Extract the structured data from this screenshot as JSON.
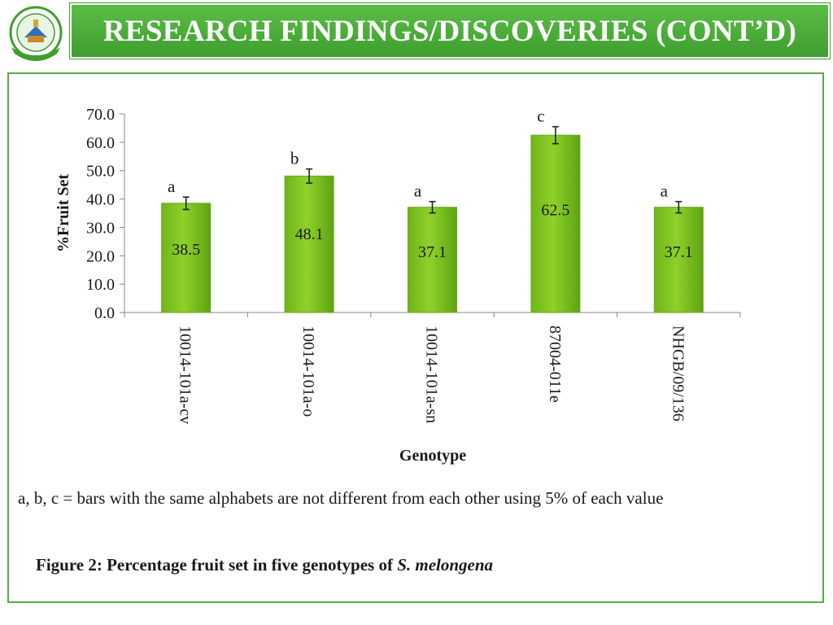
{
  "header": {
    "title": "RESEARCH FINDINGS/DISCOVERIES (CONT’D)"
  },
  "colors": {
    "banner": "#4caf3a",
    "bar": "#8fd12a",
    "frame": "#5aa84a"
  },
  "chart_data": {
    "type": "bar",
    "categories": [
      "10014-101a-cv",
      "10014-101a-o",
      "10014-101a-sn",
      "87004-011e",
      "NHGB/09/136"
    ],
    "values": [
      38.5,
      48.1,
      37.1,
      62.5,
      37.1
    ],
    "value_labels": [
      "38.5",
      "48.1",
      "37.1",
      "62.5",
      "37.1"
    ],
    "error": [
      2.2,
      2.5,
      2.0,
      3.0,
      2.0
    ],
    "significance_letters": [
      "a",
      "b",
      "a",
      "c",
      "a"
    ],
    "ylabel": "%Fruit Set",
    "xlabel": "Genotype",
    "ylim": [
      0,
      70
    ],
    "yticks": [
      "0.0",
      "10.0",
      "20.0",
      "30.0",
      "40.0",
      "50.0",
      "60.0",
      "70.0"
    ],
    "grid": false,
    "legend": "none"
  },
  "note": "a, b, c = bars with the same alphabets are not different from each other using 5% of each value",
  "caption": {
    "text": "Figure 2: Percentage fruit set in five genotypes of ",
    "species": "S. melongena"
  }
}
